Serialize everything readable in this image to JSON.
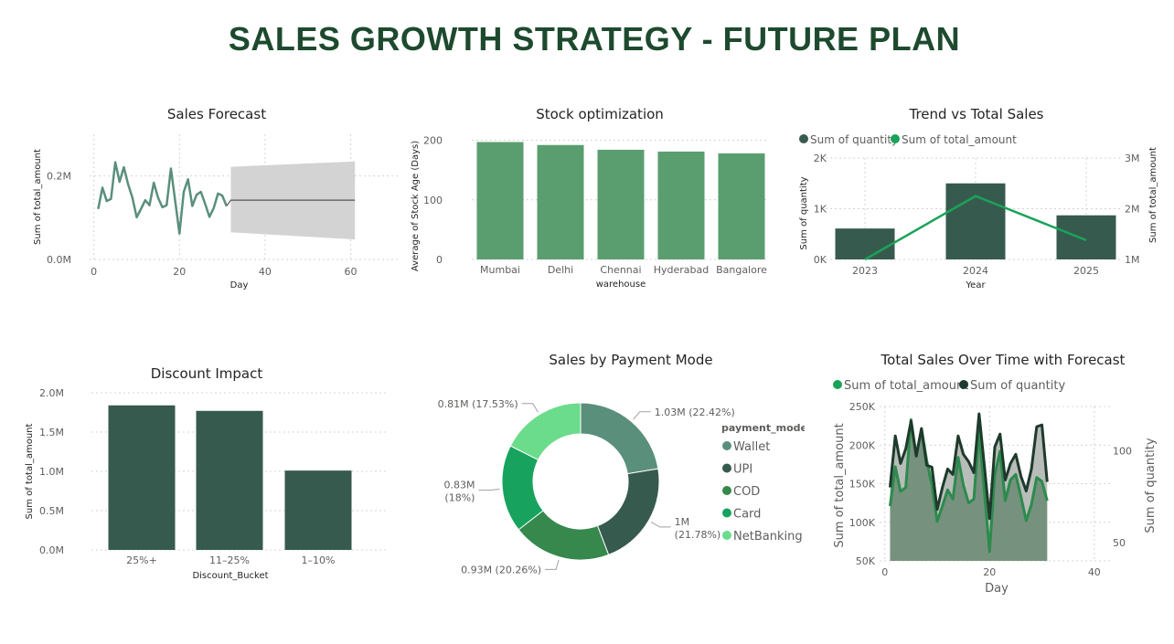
{
  "page": {
    "title": "SALES GROWTH STRATEGY - FUTURE PLAN"
  },
  "colors": {
    "title": "#1d4a2e",
    "dark_green": "#375a4e",
    "medium_green": "#5a9e6f",
    "bright_green": "#1aa358",
    "forecast_band": "#d3d3d3",
    "line_green": "#5a8f7b"
  },
  "chart_data": [
    {
      "id": "sales_forecast",
      "type": "line",
      "title": "Sales Forecast",
      "xlabel": "Day",
      "ylabel": "Sum of total_amount",
      "xlim": [
        -1,
        71
      ],
      "ylim": [
        0,
        300000
      ],
      "x_ticks": [
        0,
        20,
        40,
        60
      ],
      "y_ticks": [
        {
          "v": 0,
          "label": "0.0M"
        },
        {
          "v": 200000,
          "label": "0.2M"
        }
      ],
      "grid": true,
      "series": [
        {
          "x": [
            1,
            2,
            3,
            4,
            5,
            6,
            7,
            8,
            9,
            10,
            11,
            12,
            13,
            14,
            15,
            16,
            17,
            18,
            19,
            20,
            21,
            22,
            23,
            24,
            25,
            26,
            27,
            28,
            29,
            30,
            31
          ],
          "values": [
            121000,
            172000,
            140000,
            145000,
            233000,
            186000,
            221000,
            180000,
            148000,
            101000,
            121000,
            142000,
            130000,
            184000,
            148000,
            125000,
            130000,
            218000,
            140000,
            62000,
            162000,
            192000,
            128000,
            155000,
            162000,
            133000,
            102000,
            123000,
            158000,
            153000,
            128000
          ]
        }
      ],
      "forecast": {
        "x": [
          32,
          61
        ],
        "value": 142000,
        "upper": [
          222000,
          235000
        ],
        "lower": [
          65000,
          48000
        ]
      }
    },
    {
      "id": "stock_optimization",
      "type": "bar",
      "title": "Stock optimization",
      "xlabel": "warehouse",
      "ylabel": "Average of Stock Age (Days)",
      "ylim": [
        0,
        210
      ],
      "y_ticks": [
        0,
        100,
        200
      ],
      "categories": [
        "Mumbai",
        "Delhi",
        "Chennai",
        "Hyderabad",
        "Bangalore"
      ],
      "values": [
        197,
        192,
        184,
        181,
        178
      ]
    },
    {
      "id": "trend_vs_total",
      "type": "bar",
      "title": "Trend vs Total Sales",
      "xlabel": "Year",
      "ylabel": "Sum of quantity",
      "y2label": "Sum of total_amount",
      "legend": [
        "Sum of quantity",
        "Sum of total_amount"
      ],
      "legend_position": "top-left",
      "categories": [
        "2023",
        "2024",
        "2025"
      ],
      "ylim": [
        0,
        2000
      ],
      "y_ticks": [
        {
          "v": 0,
          "label": "0K"
        },
        {
          "v": 1000,
          "label": "1K"
        },
        {
          "v": 2000,
          "label": "2K"
        }
      ],
      "y2lim": [
        1000000,
        3000000
      ],
      "y2_ticks": [
        {
          "v": 1000000,
          "label": "1M"
        },
        {
          "v": 2000000,
          "label": "2M"
        },
        {
          "v": 3000000,
          "label": "3M"
        }
      ],
      "series": [
        {
          "name": "Sum of quantity",
          "type": "bar",
          "values": [
            610,
            1500,
            870
          ]
        },
        {
          "name": "Sum of total_amount",
          "type": "line",
          "values": [
            1000000,
            2250000,
            1380000
          ]
        }
      ]
    },
    {
      "id": "discount_impact",
      "type": "bar",
      "title": "Discount Impact",
      "xlabel": "Discount_Bucket",
      "ylabel": "Sum of total_amount",
      "ylim": [
        0,
        2000000
      ],
      "y_ticks": [
        {
          "v": 0,
          "label": "0.0M"
        },
        {
          "v": 500000,
          "label": "0.5M"
        },
        {
          "v": 1000000,
          "label": "1.0M"
        },
        {
          "v": 1500000,
          "label": "1.5M"
        },
        {
          "v": 2000000,
          "label": "2.0M"
        }
      ],
      "categories": [
        "25%+",
        "11–25%",
        "1–10%"
      ],
      "values": [
        1840000,
        1770000,
        1010000
      ]
    },
    {
      "id": "payment_mode",
      "type": "pie",
      "title": "Sales by Payment Mode",
      "legend_title": "payment_mode",
      "legend_position": "right",
      "categories": [
        "Wallet",
        "UPI",
        "COD",
        "Card",
        "NetBanking"
      ],
      "values": [
        22.42,
        21.78,
        20.26,
        18.0,
        17.53
      ],
      "labels": [
        [
          "1.03M (22.42%)"
        ],
        [
          "1M",
          "(21.78%)"
        ],
        [
          "0.93M (20.26%)"
        ],
        [
          "0.83M",
          "(18%)"
        ],
        [
          "0.81M (17.53%)"
        ]
      ],
      "colors": [
        "#5a8f7b",
        "#375a4e",
        "#36884c",
        "#17a35e",
        "#6bdc8b"
      ]
    },
    {
      "id": "total_sales_forecast",
      "type": "area",
      "title": "Total Sales Over Time with Forecast",
      "xlabel": "Day",
      "ylabel": "Sum of total_amount",
      "y2label": "Sum of quantity",
      "legend": [
        "Sum of total_amount",
        "Sum of quantity"
      ],
      "legend_position": "top-left",
      "xlim": [
        -1,
        43
      ],
      "x_ticks": [
        0,
        20,
        40
      ],
      "ylim": [
        50000,
        250000
      ],
      "y_ticks": [
        {
          "v": 50000,
          "label": "50K"
        },
        {
          "v": 100000,
          "label": "100K"
        },
        {
          "v": 150000,
          "label": "150K"
        },
        {
          "v": 200000,
          "label": "200K"
        },
        {
          "v": 250000,
          "label": "250K"
        }
      ],
      "y2lim": [
        40,
        124
      ],
      "y2_ticks": [
        {
          "v": 50,
          "label": "50"
        },
        {
          "v": 100,
          "label": "100"
        }
      ],
      "x": [
        1,
        2,
        3,
        4,
        5,
        6,
        7,
        8,
        9,
        10,
        11,
        12,
        13,
        14,
        15,
        16,
        17,
        18,
        19,
        20,
        21,
        22,
        23,
        24,
        25,
        26,
        27,
        28,
        29,
        30,
        31
      ],
      "series": [
        {
          "name": "Sum of total_amount",
          "values": [
            121000,
            172000,
            140000,
            145000,
            233000,
            186000,
            221000,
            180000,
            148000,
            101000,
            121000,
            142000,
            130000,
            184000,
            148000,
            125000,
            130000,
            218000,
            140000,
            62000,
            162000,
            192000,
            128000,
            155000,
            162000,
            133000,
            102000,
            123000,
            158000,
            153000,
            128000
          ]
        },
        {
          "name": "Sum of quantity",
          "values": [
            80,
            108,
            93,
            101,
            116,
            97,
            112,
            92,
            91,
            68,
            80,
            90,
            87,
            108,
            98,
            94,
            88,
            120,
            92,
            63,
            102,
            109,
            84,
            93,
            98,
            86,
            78,
            90,
            113,
            114,
            83
          ]
        }
      ]
    }
  ]
}
